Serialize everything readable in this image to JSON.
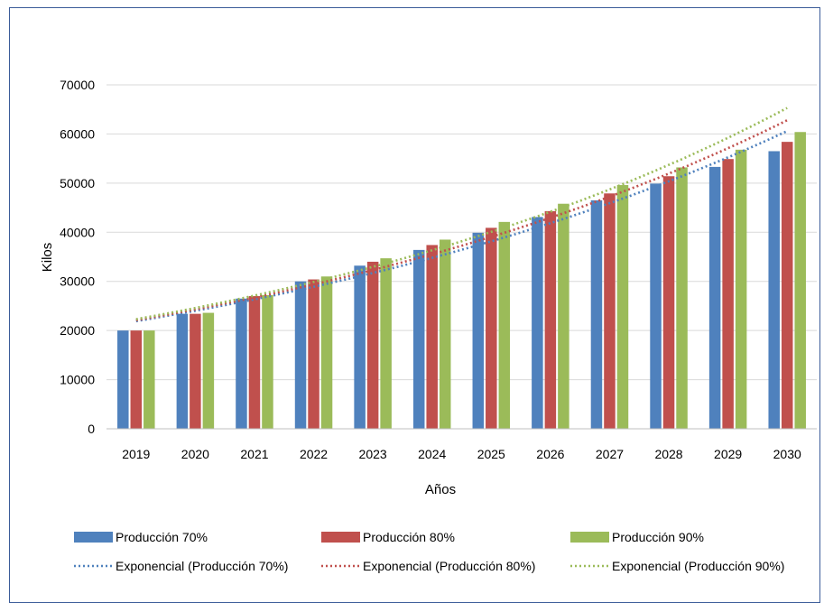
{
  "chart_data": {
    "type": "bar",
    "title": "",
    "xlabel": "Años",
    "ylabel": "Kilos",
    "ylim": [
      0,
      70000
    ],
    "yticks": [
      0,
      10000,
      20000,
      30000,
      40000,
      50000,
      60000,
      70000
    ],
    "grid": true,
    "legend_position": "bottom",
    "categories": [
      "2019",
      "2020",
      "2021",
      "2022",
      "2023",
      "2024",
      "2025",
      "2026",
      "2027",
      "2028",
      "2029",
      "2030"
    ],
    "series": [
      {
        "name": "Producción 70%",
        "color": "#4f81bd",
        "values": [
          20000,
          23400,
          26500,
          30000,
          33200,
          36400,
          39900,
          43100,
          46500,
          49900,
          53300,
          56500
        ]
      },
      {
        "name": "Producción 80%",
        "color": "#c0504d",
        "values": [
          20000,
          23400,
          27000,
          30400,
          34000,
          37400,
          40900,
          44300,
          47900,
          51400,
          54900,
          58400
        ]
      },
      {
        "name": "Producción 90%",
        "color": "#9bbb59",
        "values": [
          20000,
          23600,
          27200,
          31000,
          34700,
          38500,
          42100,
          45800,
          49600,
          53200,
          56800,
          60400
        ]
      }
    ],
    "trendlines": [
      {
        "name": "Exponencial (Producción 70%)",
        "color": "#4f81bd",
        "style": "dotted",
        "start": 21900,
        "end": 60600
      },
      {
        "name": "Exponencial (Producción 80%)",
        "color": "#c0504d",
        "style": "dotted",
        "start": 22100,
        "end": 62800
      },
      {
        "name": "Exponencial (Producción 90%)",
        "color": "#9bbb59",
        "style": "dotted",
        "start": 22300,
        "end": 65300
      }
    ]
  }
}
